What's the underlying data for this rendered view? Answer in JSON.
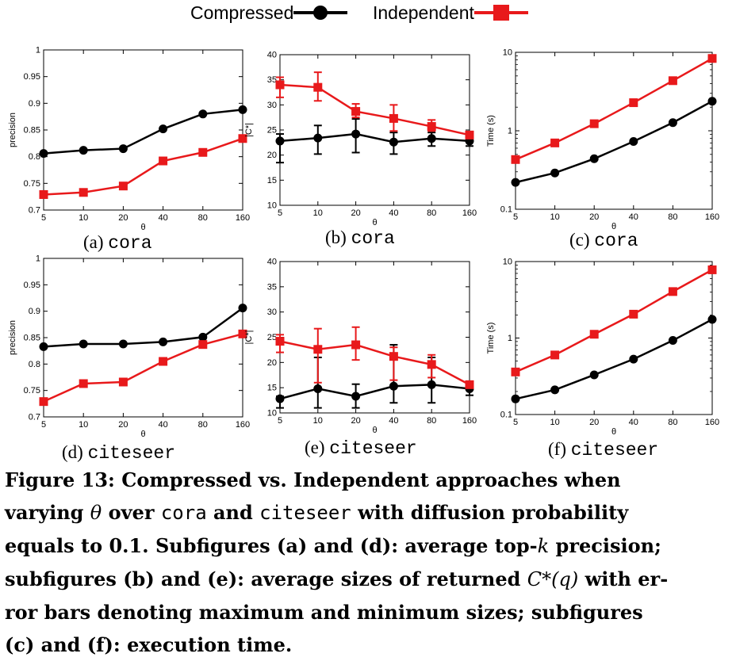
{
  "legend": {
    "compressed_label": "Compressed",
    "independent_label": "Independent",
    "compressed_color": "#000000",
    "independent_color": "#e8191b"
  },
  "panels": [
    {
      "letter": "(a)",
      "dataset": "cora"
    },
    {
      "letter": "(b)",
      "dataset": "cora"
    },
    {
      "letter": "(c)",
      "dataset": "cora"
    },
    {
      "letter": "(d)",
      "dataset": "citeseer"
    },
    {
      "letter": "(e)",
      "dataset": "citeseer"
    },
    {
      "letter": "(f)",
      "dataset": "citeseer"
    }
  ],
  "caption": {
    "line1": "Figure 13: Compressed vs. Independent approaches when",
    "line2_a": "varying",
    "theta": "θ",
    "line2_b": "over",
    "cora": "cora",
    "line2_c": "and",
    "citeseer": "citeseer",
    "line2_d": "with diffusion probability",
    "line3_a": "equals to 0.1. Subfigures (a) and (d): average top-",
    "k": "k",
    "line3_b": "precision;",
    "line4_a": "subfigures (b) and (e): average sizes of returned",
    "cstar": "C*(q)",
    "line4_b": "with er-",
    "line5": "ror bars denoting maximum and minimum sizes; subfigures",
    "line6": "(c) and (f): execution time."
  },
  "chart_data": [
    {
      "type": "line",
      "panel": "(a) cora",
      "xlabel": "θ",
      "ylabel": "precision",
      "x": [
        "5",
        "10",
        "20",
        "40",
        "80",
        "160"
      ],
      "ylim": [
        0.7,
        1
      ],
      "yticks": [
        "0.7",
        "0.75",
        "0.8",
        "0.85",
        "0.9",
        "0.95",
        "1"
      ],
      "series": [
        {
          "name": "Compressed",
          "values": [
            0.806,
            0.812,
            0.815,
            0.852,
            0.88,
            0.888
          ]
        },
        {
          "name": "Independent",
          "values": [
            0.729,
            0.733,
            0.745,
            0.792,
            0.808,
            0.834
          ]
        }
      ]
    },
    {
      "type": "line",
      "panel": "(b) cora",
      "xlabel": "θ",
      "ylabel": "|C*|",
      "x": [
        "5",
        "10",
        "20",
        "40",
        "80",
        "160"
      ],
      "ylim": [
        10,
        40
      ],
      "yticks": [
        "10",
        "15",
        "20",
        "25",
        "30",
        "35",
        "40"
      ],
      "series": [
        {
          "name": "Compressed",
          "values": [
            22.8,
            23.4,
            24.2,
            22.6,
            23.3,
            22.8
          ],
          "min": [
            18.5,
            20.2,
            20.5,
            20.2,
            21.8,
            21.8
          ],
          "max": [
            24.2,
            25.9,
            27.2,
            24.5,
            24.5,
            24.0
          ]
        },
        {
          "name": "Independent",
          "values": [
            34.0,
            33.5,
            28.7,
            27.3,
            25.7,
            24.0
          ],
          "min": [
            31.5,
            30.8,
            27.5,
            24.8,
            24.8,
            23.3
          ],
          "max": [
            35.5,
            36.5,
            30.2,
            30.0,
            27.0,
            24.5
          ]
        }
      ]
    },
    {
      "type": "line",
      "panel": "(c) cora",
      "xlabel": "θ",
      "ylabel": "Time (s)",
      "x": [
        "5",
        "10",
        "20",
        "40",
        "80",
        "160"
      ],
      "yscale": "log",
      "ylim": [
        0.1,
        10
      ],
      "yticks": [
        "0.1",
        "1",
        "10"
      ],
      "series": [
        {
          "name": "Compressed",
          "values": [
            0.22,
            0.29,
            0.44,
            0.73,
            1.27,
            2.38
          ]
        },
        {
          "name": "Independent",
          "values": [
            0.43,
            0.7,
            1.23,
            2.28,
            4.35,
            8.35
          ]
        }
      ]
    },
    {
      "type": "line",
      "panel": "(d) citeseer",
      "xlabel": "θ",
      "ylabel": "precision",
      "x": [
        "5",
        "10",
        "20",
        "40",
        "80",
        "160"
      ],
      "ylim": [
        0.7,
        1
      ],
      "yticks": [
        "0.7",
        "0.75",
        "0.8",
        "0.85",
        "0.9",
        "0.95",
        "1"
      ],
      "series": [
        {
          "name": "Compressed",
          "values": [
            0.833,
            0.838,
            0.838,
            0.842,
            0.851,
            0.906
          ]
        },
        {
          "name": "Independent",
          "values": [
            0.729,
            0.763,
            0.766,
            0.805,
            0.837,
            0.857
          ]
        }
      ]
    },
    {
      "type": "line",
      "panel": "(e) citeseer",
      "xlabel": "θ",
      "ylabel": "|C*|",
      "x": [
        "5",
        "10",
        "20",
        "40",
        "80",
        "160"
      ],
      "ylim": [
        10,
        40
      ],
      "yticks": [
        "10",
        "15",
        "20",
        "25",
        "30",
        "35",
        "40"
      ],
      "series": [
        {
          "name": "Compressed",
          "values": [
            12.8,
            14.8,
            13.3,
            15.3,
            15.6,
            14.8
          ],
          "min": [
            11.0,
            11.0,
            11.0,
            12.0,
            12.0,
            13.5
          ],
          "max": [
            13.3,
            21.0,
            15.7,
            23.5,
            21.0,
            15.5
          ]
        },
        {
          "name": "Independent",
          "values": [
            24.2,
            22.6,
            23.5,
            21.2,
            19.6,
            15.6
          ],
          "min": [
            22.0,
            16.0,
            20.5,
            16.5,
            17.0,
            15.0
          ],
          "max": [
            25.5,
            26.7,
            27.0,
            23.0,
            21.5,
            15.7
          ]
        }
      ]
    },
    {
      "type": "line",
      "panel": "(f) citeseer",
      "xlabel": "θ",
      "ylabel": "Time (s)",
      "x": [
        "5",
        "10",
        "20",
        "40",
        "80",
        "160"
      ],
      "yscale": "log",
      "ylim": [
        0.1,
        10
      ],
      "yticks": [
        "0.1",
        "1",
        "10"
      ],
      "series": [
        {
          "name": "Compressed",
          "values": [
            0.16,
            0.21,
            0.33,
            0.53,
            0.93,
            1.75
          ]
        },
        {
          "name": "Independent",
          "values": [
            0.36,
            0.6,
            1.12,
            2.05,
            4.05,
            7.8
          ]
        }
      ]
    }
  ]
}
